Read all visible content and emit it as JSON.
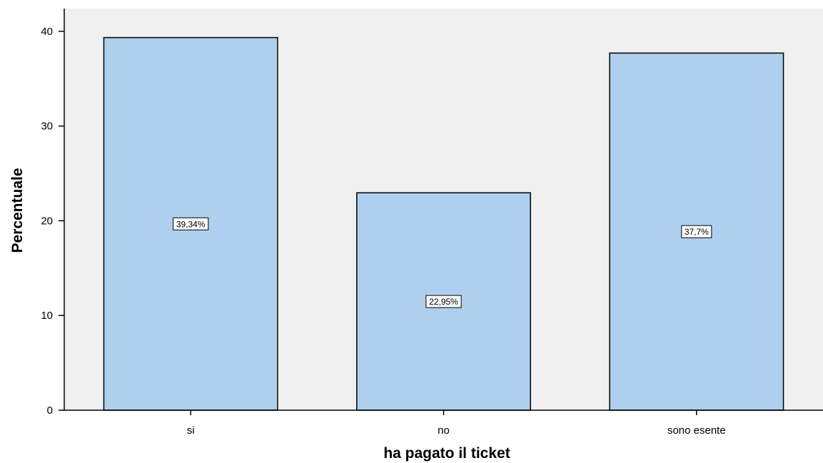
{
  "chart_data": {
    "type": "bar",
    "categories": [
      "si",
      "no",
      "sono esente"
    ],
    "values": [
      39.34,
      22.95,
      37.7
    ],
    "data_labels": [
      "39,34%",
      "22,95%",
      "37,7%"
    ],
    "title": "",
    "xlabel": "ha pagato il ticket",
    "ylabel": "Percentuale",
    "ylim": [
      0,
      42.4
    ],
    "yticks": [
      0,
      10,
      20,
      30,
      40
    ],
    "grid": false,
    "colors": {
      "bar_fill": "#aecfee",
      "bar_stroke": "#000000",
      "plot_background": "#f0f0f0",
      "label_box": "#ffffff"
    }
  }
}
